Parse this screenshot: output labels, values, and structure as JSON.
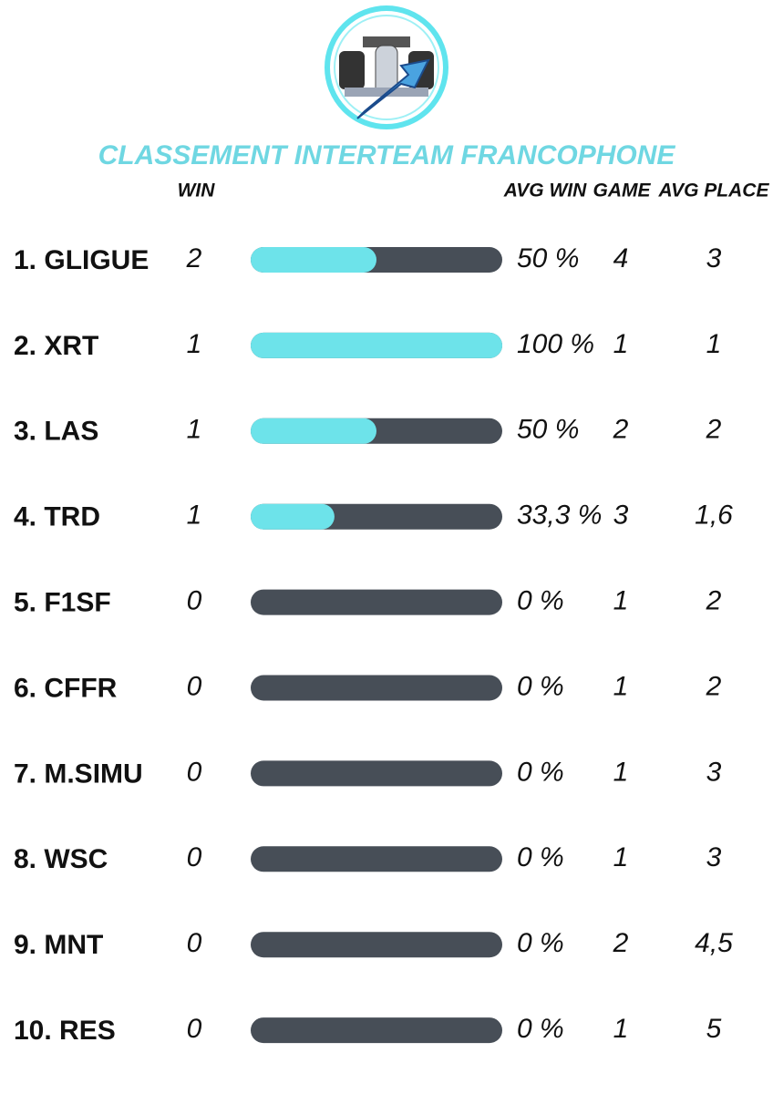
{
  "header": {
    "title": "CLASSEMENT INTERTEAM FRANCOPHONE"
  },
  "table": {
    "columns": {
      "win": "WIN",
      "avg_win": "AVG WIN",
      "game": "GAME",
      "avg_place": "AVG PLACE"
    },
    "bar_range": [
      0,
      100
    ],
    "rows": [
      {
        "team": "1. GLIGUE",
        "win": 2,
        "avg_win": {
          "value": 50,
          "label": "50 %"
        },
        "game": 4,
        "avg_place": 3
      },
      {
        "team": "2. XRT",
        "win": 1,
        "avg_win": {
          "value": 100,
          "label": "100 %"
        },
        "game": 1,
        "avg_place": 1
      },
      {
        "team": "3. LAS",
        "win": 1,
        "avg_win": {
          "value": 50,
          "label": "50 %"
        },
        "game": 2,
        "avg_place": 2
      },
      {
        "team": "4. TRD",
        "win": 1,
        "avg_win": {
          "value": 33.3,
          "label": "33,3 %"
        },
        "game": 3,
        "avg_place": "1,6"
      },
      {
        "team": "5. F1SF",
        "win": 0,
        "avg_win": {
          "value": 0,
          "label": "0 %"
        },
        "game": 1,
        "avg_place": 2
      },
      {
        "team": "6. CFFR",
        "win": 0,
        "avg_win": {
          "value": 0,
          "label": "0 %"
        },
        "game": 1,
        "avg_place": 2
      },
      {
        "team": "7. M.SIMU",
        "win": 0,
        "avg_win": {
          "value": 0,
          "label": "0 %"
        },
        "game": 1,
        "avg_place": 3
      },
      {
        "team": "8. WSC",
        "win": 0,
        "avg_win": {
          "value": 0,
          "label": "0 %"
        },
        "game": 1,
        "avg_place": 3
      },
      {
        "team": "9. MNT",
        "win": 0,
        "avg_win": {
          "value": 0,
          "label": "0 %"
        },
        "game": 2,
        "avg_place": "4,5"
      },
      {
        "team": "10. RES",
        "win": 0,
        "avg_win": {
          "value": 0,
          "label": "0 %"
        },
        "game": 1,
        "avg_place": 5
      }
    ]
  }
}
